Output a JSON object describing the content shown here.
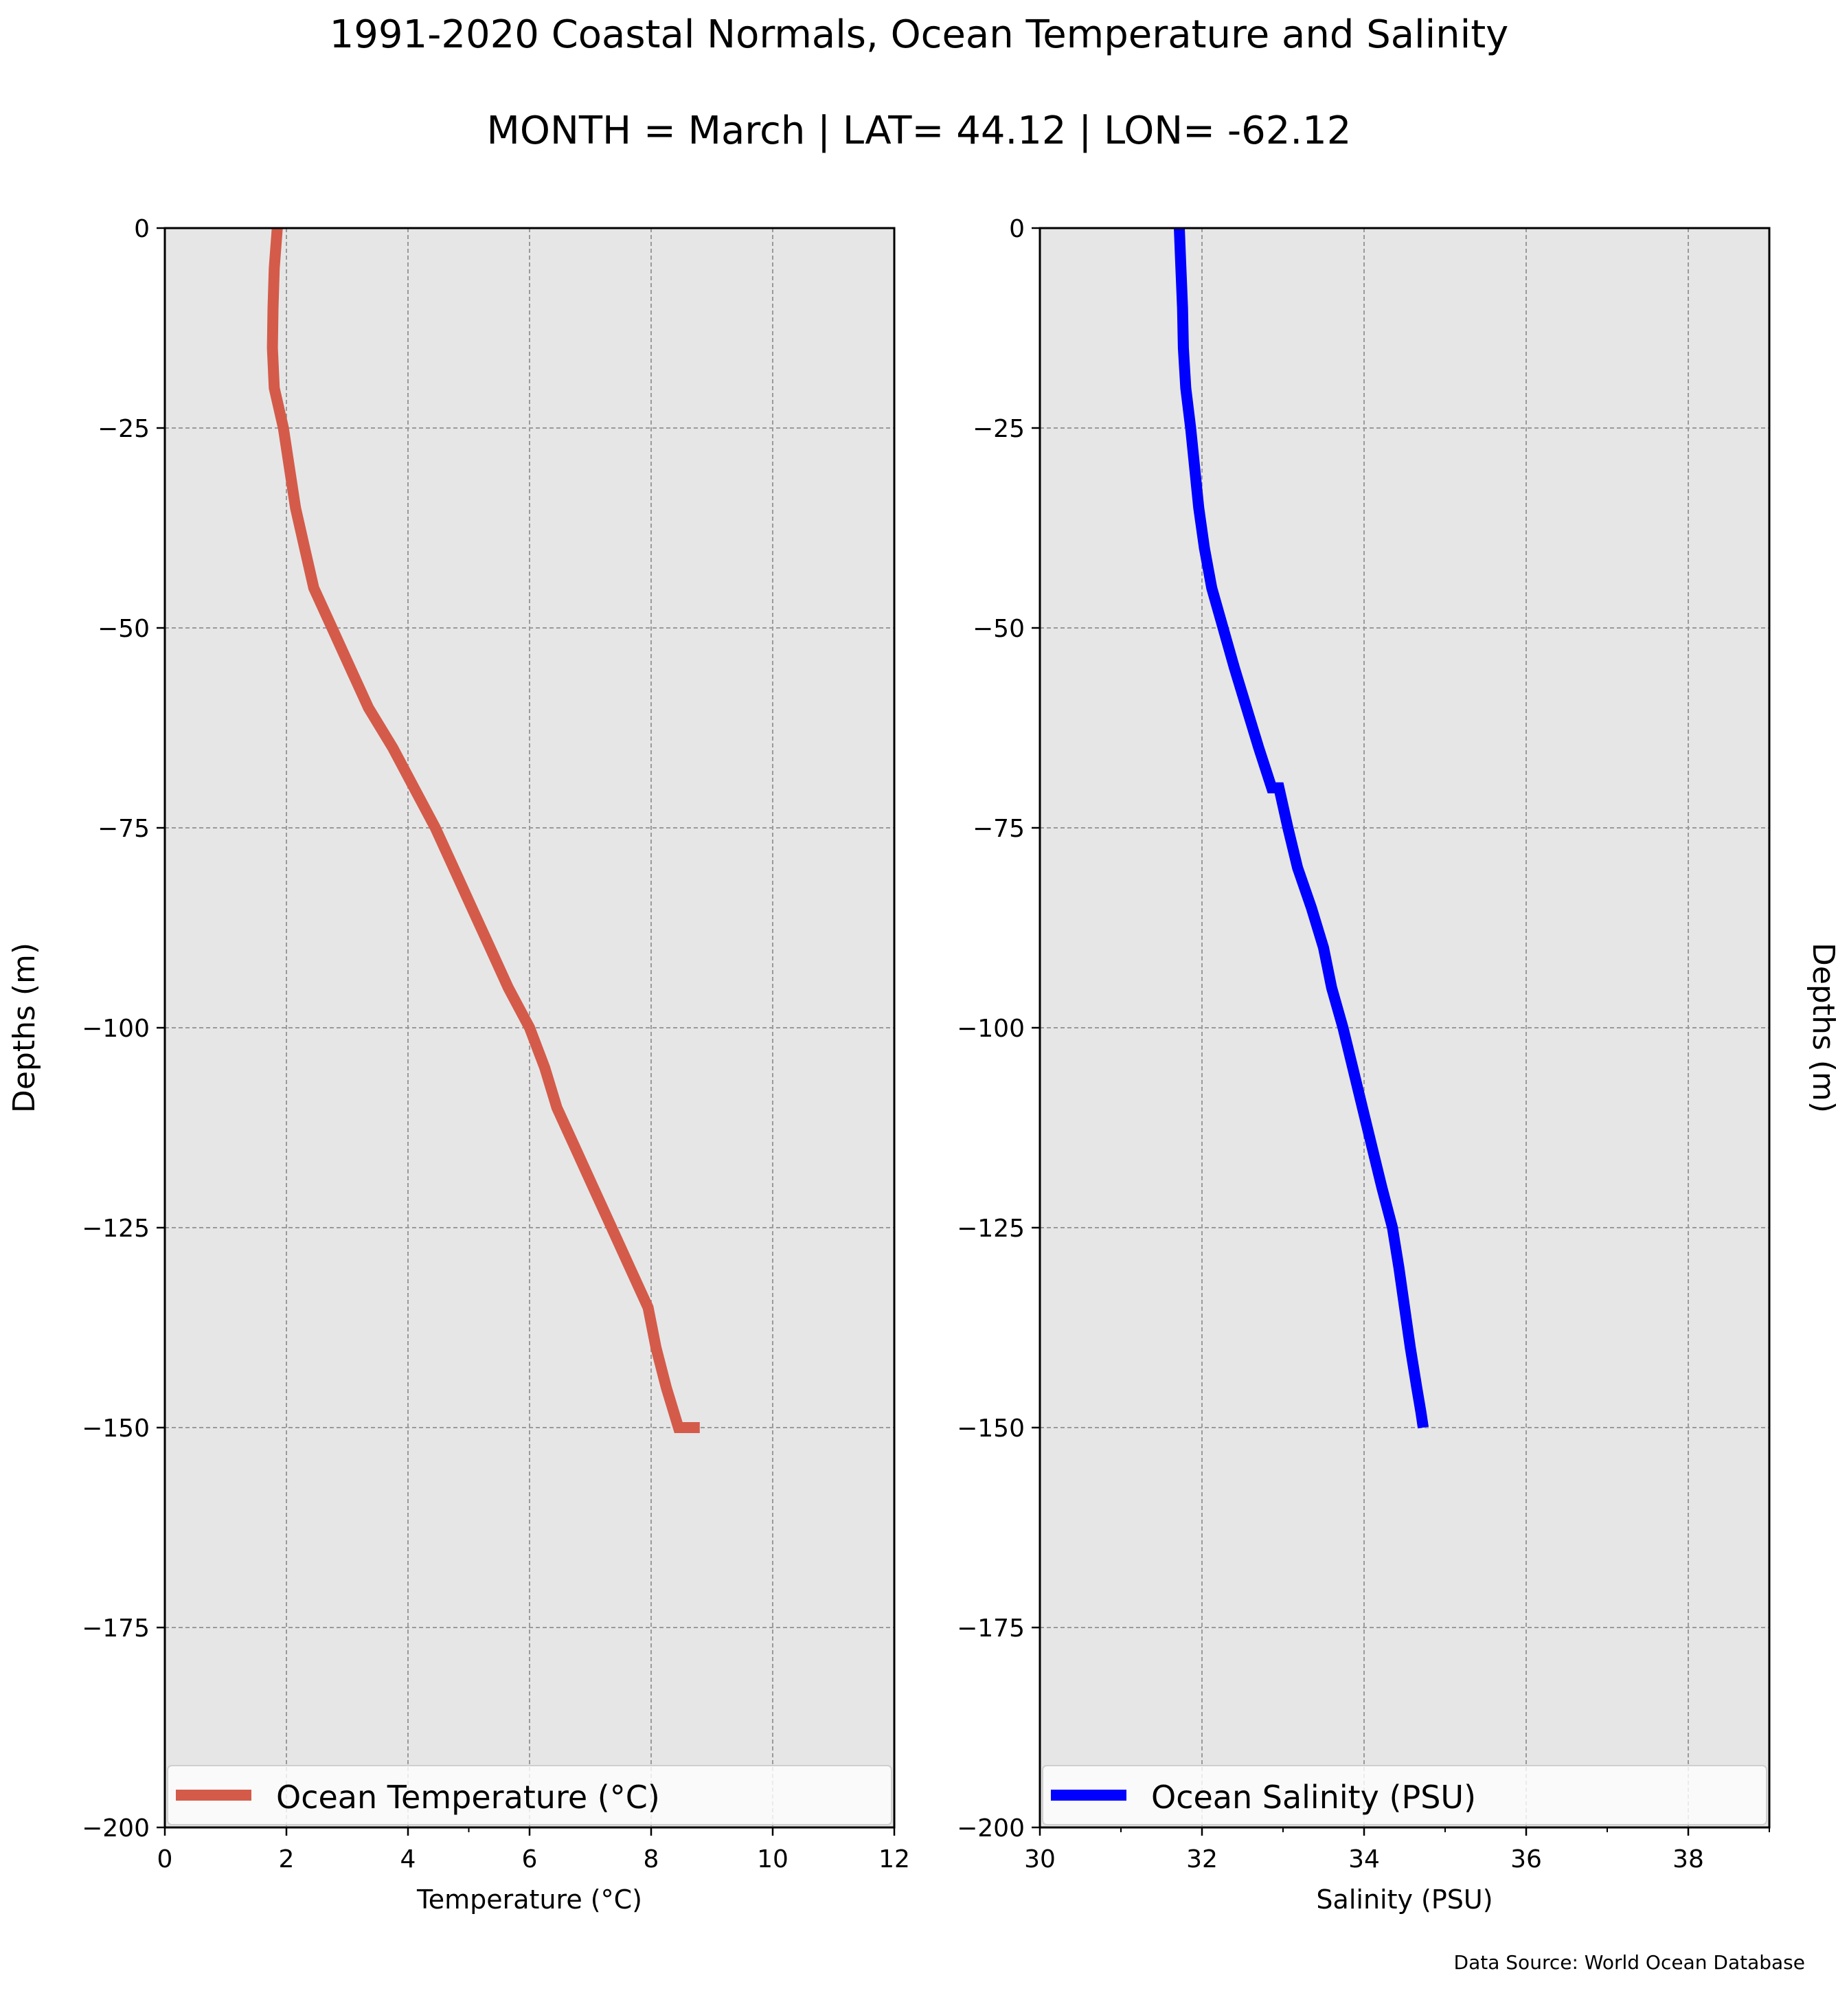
{
  "title": "1991-2020 Coastal Normals, Ocean Temperature and Salinity",
  "subtitle": "MONTH = March | LAT= 44.12 | LON= -62.12",
  "source_note": "Data Source: World Ocean Database",
  "colors": {
    "temperature": "#d45b4a",
    "salinity": "#0000ff",
    "panel_bg": "#e6e6e6",
    "grid": "#9a9a9a"
  },
  "chart_data": [
    {
      "type": "line",
      "xlabel": "Temperature (°C)",
      "ylabel": "Depths (m)",
      "xlim": [
        0,
        12
      ],
      "ylim": [
        -200,
        0
      ],
      "xticks": [
        0,
        2,
        4,
        6,
        8,
        10,
        12
      ],
      "yticks": [
        0,
        -25,
        -50,
        -75,
        -100,
        -125,
        -150,
        -175,
        -200
      ],
      "x_minor_ticks": [
        5
      ],
      "grid": true,
      "legend_position": "bottom",
      "series": [
        {
          "name": "Ocean Temperature (°C)",
          "color": "#d45b4a",
          "x": [
            1.85,
            1.8,
            1.78,
            1.77,
            1.8,
            1.95,
            2.05,
            2.15,
            2.3,
            2.45,
            2.75,
            3.05,
            3.35,
            3.75,
            4.1,
            4.45,
            4.75,
            5.05,
            5.35,
            5.65,
            6.0,
            6.25,
            6.45,
            6.75,
            7.05,
            7.35,
            7.65,
            7.95,
            8.08,
            8.25,
            8.45,
            8.62,
            8.8
          ],
          "y": [
            0,
            -5,
            -10,
            -15,
            -20,
            -25,
            -30,
            -35,
            -40,
            -45,
            -50,
            -55,
            -60,
            -65,
            -70,
            -75,
            -80,
            -85,
            -90,
            -95,
            -100,
            -105,
            -110,
            -115,
            -120,
            -125,
            -130,
            -135,
            -140,
            -145,
            -150,
            -150,
            -150
          ]
        }
      ]
    },
    {
      "type": "line",
      "xlabel": "Salinity (PSU)",
      "ylabel": "Depths (m)",
      "xlim": [
        30,
        39
      ],
      "ylim": [
        -200,
        0
      ],
      "xticks": [
        30,
        32,
        34,
        36,
        38
      ],
      "yticks": [
        0,
        -25,
        -50,
        -75,
        -100,
        -125,
        -150,
        -175,
        -200
      ],
      "x_minor_ticks": [
        31,
        33,
        35,
        37,
        39
      ],
      "grid": true,
      "legend_position": "bottom",
      "series": [
        {
          "name": "Ocean Salinity (PSU)",
          "color": "#0000ff",
          "x": [
            31.72,
            31.74,
            31.76,
            31.77,
            31.8,
            31.86,
            31.91,
            31.96,
            32.03,
            32.12,
            32.26,
            32.4,
            32.55,
            32.7,
            32.86,
            32.95,
            33.06,
            33.18,
            33.35,
            33.5,
            33.6,
            33.74,
            33.86,
            33.98,
            34.1,
            34.22,
            34.35,
            34.43,
            34.5,
            34.57,
            34.65,
            34.7,
            34.73
          ],
          "y": [
            0,
            -5,
            -10,
            -15,
            -20,
            -25,
            -30,
            -35,
            -40,
            -45,
            -50,
            -55,
            -60,
            -65,
            -70,
            -70,
            -75,
            -80,
            -85,
            -90,
            -95,
            -100,
            -105,
            -110,
            -115,
            -120,
            -125,
            -130,
            -135,
            -140,
            -145,
            -148,
            -150
          ]
        }
      ]
    }
  ]
}
